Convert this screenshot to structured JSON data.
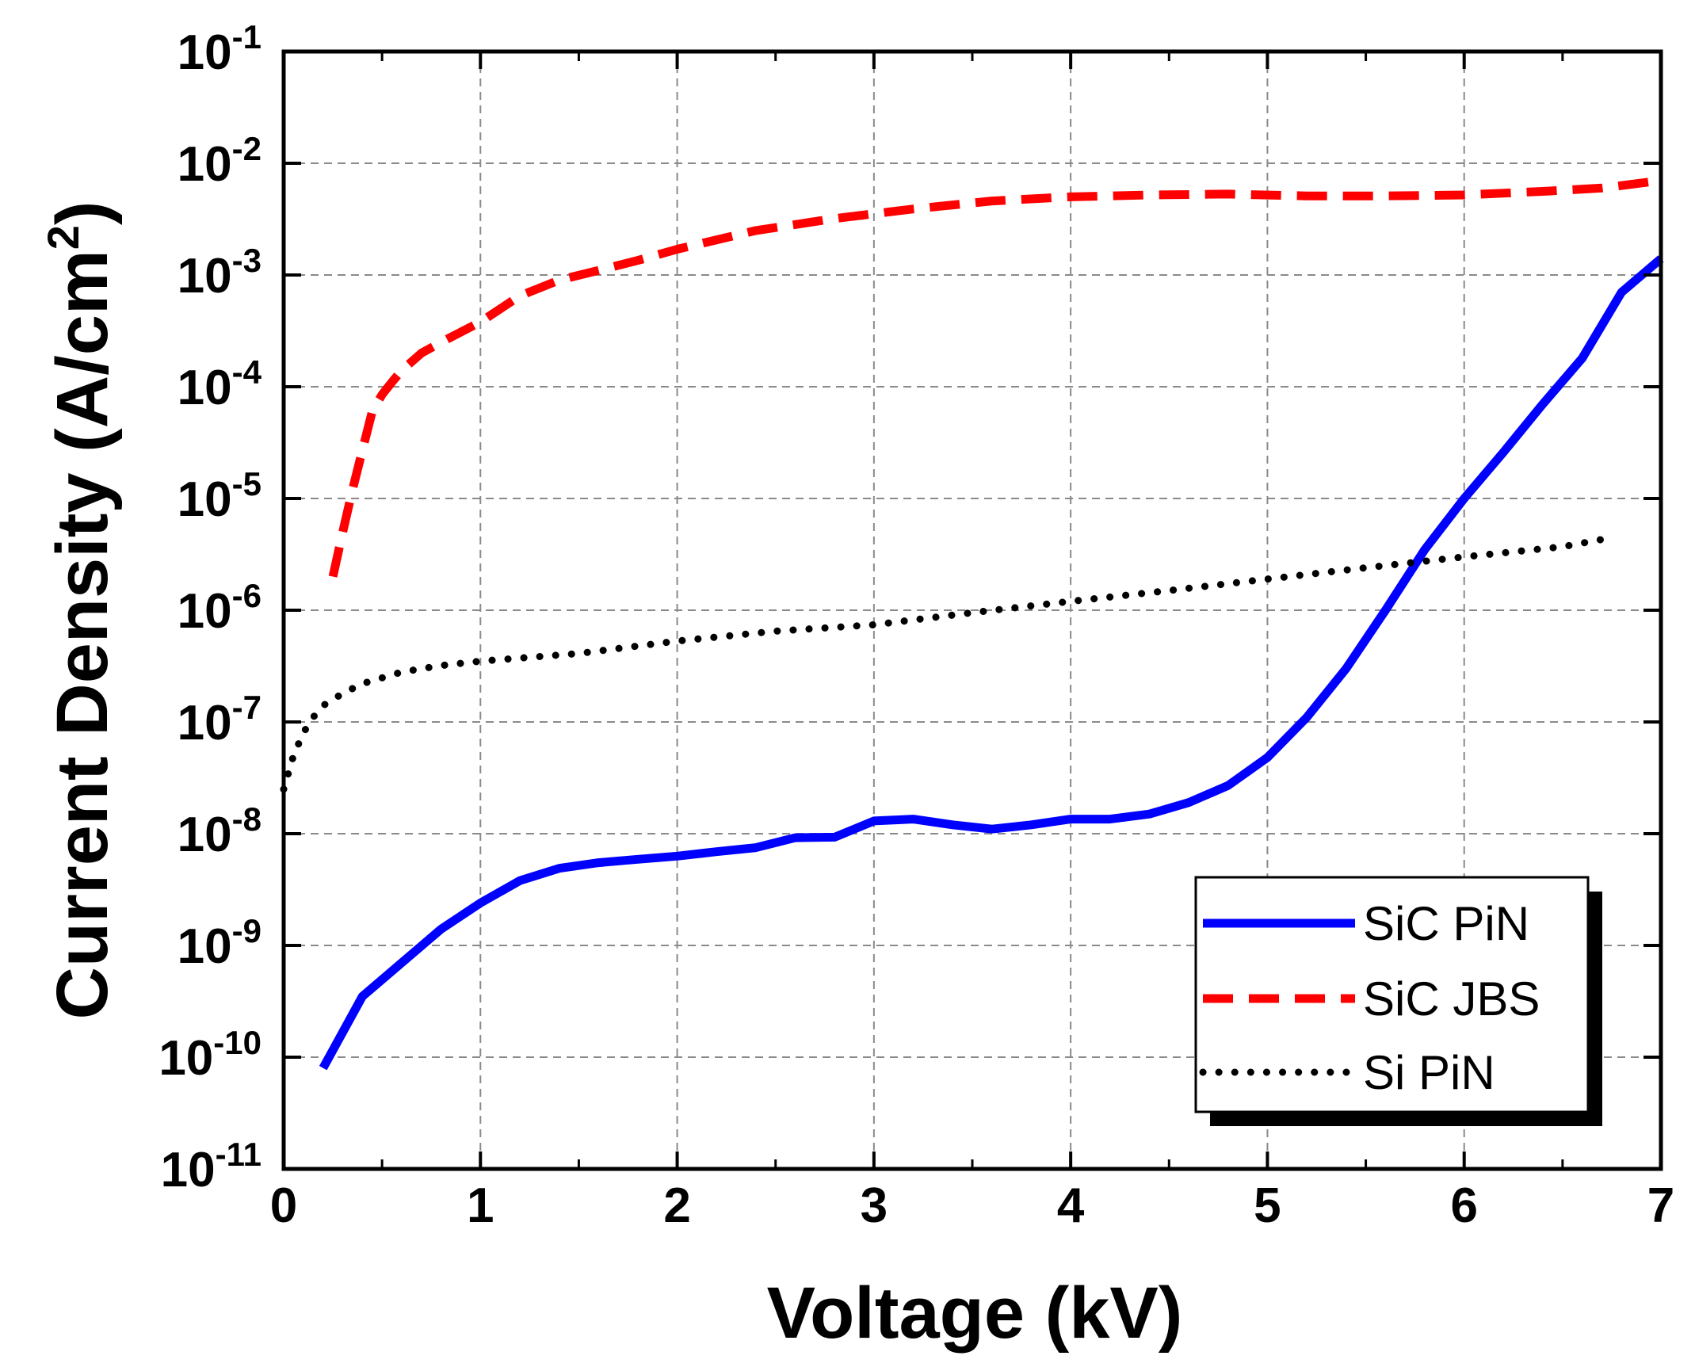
{
  "chart_data": {
    "type": "line",
    "title": "",
    "xlabel": "Voltage (kV)",
    "ylabel": {
      "base": "Current Density (A/cm",
      "superscript": "2",
      "suffix": ")"
    },
    "x_range": [
      0,
      7
    ],
    "y_range_log10": [
      -11,
      -1
    ],
    "y_scale": "log",
    "grid": true,
    "legend_position": "bottom-right",
    "x_ticks": [
      "0",
      "1",
      "2",
      "3",
      "4",
      "5",
      "6",
      "7"
    ],
    "y_ticks": [
      {
        "base": "10",
        "exp": "-1"
      },
      {
        "base": "10",
        "exp": "-2"
      },
      {
        "base": "10",
        "exp": "-3"
      },
      {
        "base": "10",
        "exp": "-4"
      },
      {
        "base": "10",
        "exp": "-5"
      },
      {
        "base": "10",
        "exp": "-6"
      },
      {
        "base": "10",
        "exp": "-7"
      },
      {
        "base": "10",
        "exp": "-8"
      },
      {
        "base": "10",
        "exp": "-9"
      },
      {
        "base": "10",
        "exp": "-10"
      },
      {
        "base": "10",
        "exp": "-11"
      }
    ],
    "series": [
      {
        "name": "SiC PiN",
        "color": "#0000ff",
        "style": "solid",
        "x": [
          0.2,
          0.4,
          0.6,
          0.8,
          1.0,
          1.2,
          1.4,
          1.6,
          1.8,
          2.0,
          2.2,
          2.4,
          2.6,
          2.8,
          3.0,
          3.2,
          3.4,
          3.6,
          3.8,
          4.0,
          4.2,
          4.4,
          4.6,
          4.8,
          5.0,
          5.2,
          5.4,
          5.6,
          5.8,
          6.0,
          6.2,
          6.4,
          6.6,
          6.8,
          7.0
        ],
        "y": [
          8e-11,
          3.5e-10,
          7e-10,
          1.4e-09,
          2.4e-09,
          3.8e-09,
          4.9e-09,
          5.5e-09,
          5.9e-09,
          6.3e-09,
          6.9e-09,
          7.5e-09,
          9.2e-09,
          9.3e-09,
          1.3e-08,
          1.35e-08,
          1.2e-08,
          1.1e-08,
          1.2e-08,
          1.35e-08,
          1.35e-08,
          1.5e-08,
          1.9e-08,
          2.7e-08,
          4.8e-08,
          1.1e-07,
          3e-07,
          1e-06,
          3.5e-06,
          1e-05,
          2.6e-05,
          7e-05,
          0.00018,
          0.0007,
          0.0014
        ]
      },
      {
        "name": "SiC JBS",
        "color": "#ff0000",
        "style": "dashed",
        "x": [
          0.25,
          0.3,
          0.35,
          0.4,
          0.45,
          0.5,
          0.55,
          0.6,
          0.7,
          0.8,
          1.0,
          1.2,
          1.4,
          1.6,
          1.8,
          2.0,
          2.4,
          2.8,
          3.2,
          3.6,
          4.0,
          4.4,
          4.8,
          5.2,
          5.6,
          6.0,
          6.4,
          6.7,
          7.0
        ],
        "y": [
          2e-06,
          5e-06,
          1.2e-05,
          2.7e-05,
          6e-05,
          8.5e-05,
          0.00011,
          0.00014,
          0.0002,
          0.00025,
          0.00038,
          0.00065,
          0.0009,
          0.0011,
          0.00135,
          0.0017,
          0.0025,
          0.0032,
          0.0039,
          0.0046,
          0.005,
          0.0052,
          0.0053,
          0.0051,
          0.0051,
          0.0052,
          0.0056,
          0.006,
          0.007
        ]
      },
      {
        "name": "Si PiN",
        "color": "#000000",
        "style": "dotted",
        "x": [
          0.0,
          0.05,
          0.1,
          0.15,
          0.2,
          0.3,
          0.4,
          0.6,
          0.8,
          1.0,
          1.5,
          2.0,
          2.5,
          3.0,
          3.5,
          4.0,
          4.5,
          5.0,
          5.5,
          6.0,
          6.5,
          6.7
        ],
        "y": [
          2.5e-08,
          5e-08,
          8e-08,
          1.1e-07,
          1.4e-07,
          1.8e-07,
          2.2e-07,
          2.8e-07,
          3.2e-07,
          3.5e-07,
          4.1e-07,
          5.3e-07,
          6.5e-07,
          7.4e-07,
          9.5e-07,
          1.2e-06,
          1.5e-06,
          1.9e-06,
          2.4e-06,
          3e-06,
          3.7e-06,
          4.3e-06
        ]
      }
    ]
  }
}
